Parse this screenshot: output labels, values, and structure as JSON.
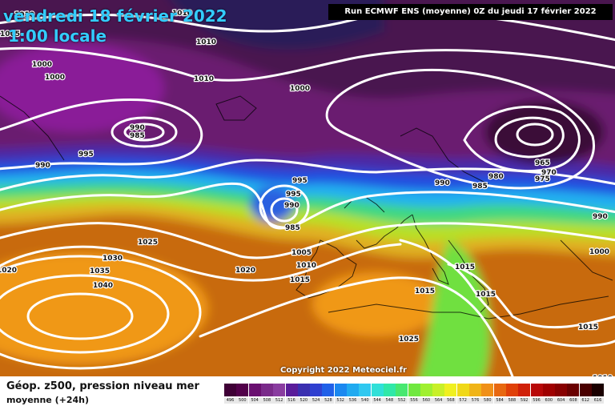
{
  "title": {
    "date": "vendredi 18 février 2022",
    "time": "1:00 locale"
  },
  "run_info": "Run ECMWF ENS (moyenne) 0Z du jeudi 17 février 2022",
  "copyright": "Copyright 2022 Meteociel.fr",
  "legend": {
    "title": "Géop. z500, pression niveau mer",
    "subtitle": "moyenne  (+24h)",
    "scale_values": [
      "496",
      "500",
      "504",
      "508",
      "512",
      "516",
      "520",
      "524",
      "528",
      "532",
      "536",
      "540",
      "544",
      "548",
      "552",
      "556",
      "560",
      "564",
      "568",
      "572",
      "576",
      "580",
      "584",
      "588",
      "592",
      "596",
      "600",
      "604",
      "608",
      "612",
      "616"
    ],
    "scale_colors": [
      "#3f0036",
      "#52004a",
      "#6a1070",
      "#7a2a8a",
      "#8a3ca0",
      "#5a1c9a",
      "#3a2fb0",
      "#3040d0",
      "#2060e8",
      "#1a88f0",
      "#20aaf0",
      "#30c8f0",
      "#30e0d8",
      "#30e8a8",
      "#48e870",
      "#70e840",
      "#a0f030",
      "#c8f028",
      "#f0f020",
      "#f0d818",
      "#f0b418",
      "#f09018",
      "#e86810",
      "#e04008",
      "#d02008",
      "#b80808",
      "#a00000",
      "#880000",
      "#6a0000",
      "#4a0000",
      "#1a0000"
    ]
  },
  "isobar_labels": [
    {
      "text": "1010"
    },
    {
      "text": "1005"
    },
    {
      "text": "1010"
    },
    {
      "text": "1010"
    },
    {
      "text": "1000"
    },
    {
      "text": "1000"
    },
    {
      "text": "1010"
    },
    {
      "text": "1000"
    },
    {
      "text": "990"
    },
    {
      "text": "985"
    },
    {
      "text": "995"
    },
    {
      "text": "990"
    },
    {
      "text": "995"
    },
    {
      "text": "995"
    },
    {
      "text": "990"
    },
    {
      "text": "985"
    },
    {
      "text": "990"
    },
    {
      "text": "985"
    },
    {
      "text": "980"
    },
    {
      "text": "965"
    },
    {
      "text": "970"
    },
    {
      "text": "975"
    },
    {
      "text": "990"
    },
    {
      "text": "1025"
    },
    {
      "text": "1030"
    },
    {
      "text": "1035"
    },
    {
      "text": "1040"
    },
    {
      "text": "1020"
    },
    {
      "text": "1020"
    },
    {
      "text": "1005"
    },
    {
      "text": "1010"
    },
    {
      "text": "1015"
    },
    {
      "text": "1015"
    },
    {
      "text": "1015"
    },
    {
      "text": "1015"
    },
    {
      "text": "1000"
    },
    {
      "text": "1025"
    },
    {
      "text": "1015"
    },
    {
      "text": "1010"
    }
  ]
}
